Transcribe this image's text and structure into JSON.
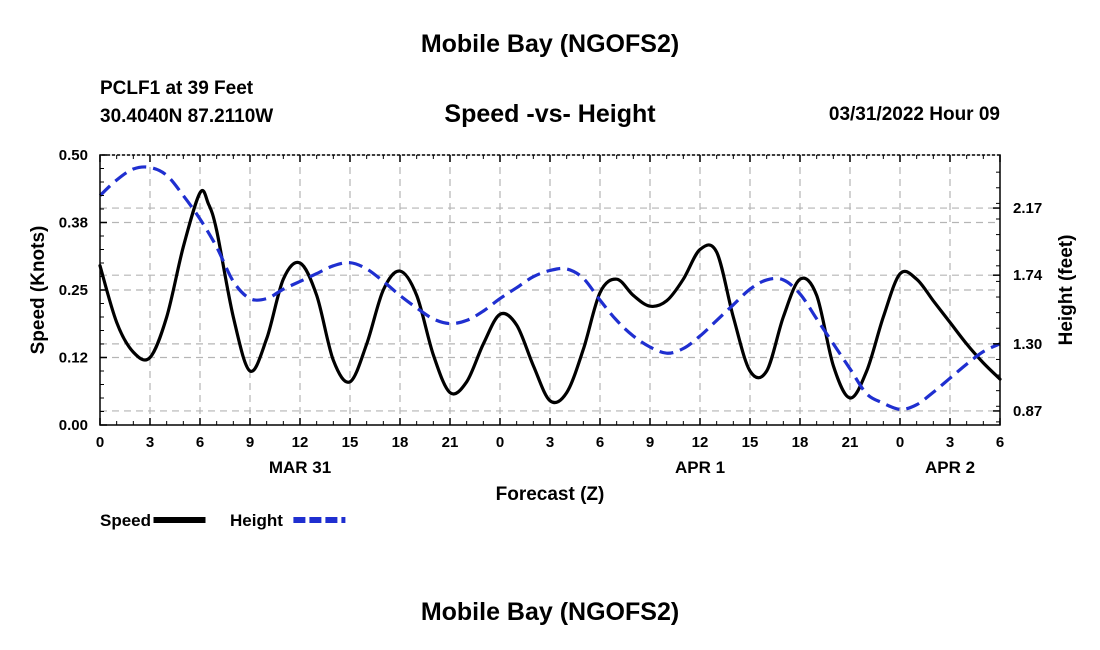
{
  "header": {
    "title": "Mobile Bay (NGOFS2)",
    "station_line": "PCLF1 at 39 Feet",
    "coords_line": "30.4040N  87.2110W",
    "subtitle": "Speed -vs- Height",
    "datetime": "03/31/2022 Hour 09"
  },
  "footer": {
    "title": "Mobile Bay (NGOFS2)"
  },
  "chart_data": {
    "type": "line",
    "title": "Speed -vs- Height",
    "xlabel": "Forecast (Z)",
    "ylabel": "Speed (Knots)",
    "y2label": "Height (feet)",
    "xlim": [
      0,
      54
    ],
    "ylim": [
      0,
      0.5
    ],
    "y2lim": [
      0.78,
      2.51
    ],
    "x_tick_values": [
      0,
      3,
      6,
      9,
      12,
      15,
      18,
      21,
      24,
      27,
      30,
      33,
      36,
      39,
      42,
      45,
      48,
      51,
      54
    ],
    "x_tick_labels": [
      "0",
      "3",
      "6",
      "9",
      "12",
      "15",
      "18",
      "21",
      "0",
      "3",
      "6",
      "9",
      "12",
      "15",
      "18",
      "21",
      "0",
      "3",
      "6"
    ],
    "date_labels": [
      {
        "x": 12,
        "label": "MAR 31"
      },
      {
        "x": 36,
        "label": "APR 1"
      },
      {
        "x": 51,
        "label": "APR 2"
      }
    ],
    "y_tick_values": [
      0,
      0.125,
      0.25,
      0.375,
      0.5
    ],
    "y_tick_labels": [
      "0.00",
      "0.12",
      "0.25",
      "0.38",
      "0.50"
    ],
    "y2_tick_values": [
      0.87,
      1.3,
      1.74,
      2.17
    ],
    "y2_tick_labels": [
      "0.87",
      "1.30",
      "1.74",
      "2.17"
    ],
    "grid": true,
    "legend_position": "bottom-left",
    "series": [
      {
        "name": "Speed",
        "axis": "left",
        "color": "#000000",
        "style": "solid",
        "x": [
          0,
          1,
          2,
          3,
          4,
          5,
          6,
          6.5,
          7,
          8,
          9,
          10,
          11,
          12,
          13,
          14,
          15,
          16,
          17,
          18,
          19,
          20,
          21,
          22,
          23,
          24,
          25,
          26,
          27,
          28,
          29,
          30,
          31,
          32,
          33,
          34,
          35,
          36,
          37,
          38,
          39,
          40,
          41,
          42,
          43,
          44,
          45,
          46,
          47,
          48,
          49,
          50,
          51,
          52,
          53,
          54
        ],
        "values": [
          0.295,
          0.19,
          0.135,
          0.125,
          0.2,
          0.33,
          0.43,
          0.41,
          0.36,
          0.2,
          0.1,
          0.16,
          0.27,
          0.3,
          0.24,
          0.12,
          0.08,
          0.15,
          0.25,
          0.285,
          0.24,
          0.13,
          0.06,
          0.08,
          0.15,
          0.205,
          0.185,
          0.11,
          0.045,
          0.06,
          0.14,
          0.245,
          0.27,
          0.24,
          0.22,
          0.23,
          0.27,
          0.325,
          0.32,
          0.2,
          0.1,
          0.1,
          0.2,
          0.27,
          0.24,
          0.11,
          0.05,
          0.1,
          0.2,
          0.28,
          0.27,
          0.23,
          0.19,
          0.15,
          0.115,
          0.085
        ]
      },
      {
        "name": "Height",
        "axis": "right",
        "color": "#1f2fd0",
        "style": "dashed",
        "x": [
          0,
          1,
          2,
          3,
          4,
          5,
          6,
          7,
          8,
          9,
          10,
          11,
          12,
          13,
          14,
          15,
          16,
          17,
          18,
          19,
          20,
          21,
          22,
          23,
          24,
          25,
          26,
          27,
          28,
          29,
          30,
          31,
          32,
          33,
          34,
          35,
          36,
          37,
          38,
          39,
          40,
          41,
          42,
          43,
          44,
          45,
          46,
          47,
          48,
          49,
          50,
          51,
          52,
          53,
          54
        ],
        "values": [
          2.25,
          2.35,
          2.42,
          2.43,
          2.38,
          2.25,
          2.1,
          1.92,
          1.7,
          1.59,
          1.59,
          1.65,
          1.7,
          1.75,
          1.8,
          1.82,
          1.78,
          1.7,
          1.61,
          1.53,
          1.46,
          1.43,
          1.45,
          1.51,
          1.59,
          1.66,
          1.73,
          1.77,
          1.78,
          1.72,
          1.58,
          1.45,
          1.35,
          1.28,
          1.24,
          1.27,
          1.35,
          1.45,
          1.55,
          1.65,
          1.71,
          1.71,
          1.62,
          1.46,
          1.3,
          1.14,
          0.98,
          0.92,
          0.88,
          0.91,
          0.99,
          1.08,
          1.17,
          1.25,
          1.3
        ]
      }
    ]
  },
  "legend": [
    {
      "label": "Speed",
      "color": "#000000",
      "style": "solid"
    },
    {
      "label": "Height",
      "color": "#1f2fd0",
      "style": "dashed"
    }
  ]
}
